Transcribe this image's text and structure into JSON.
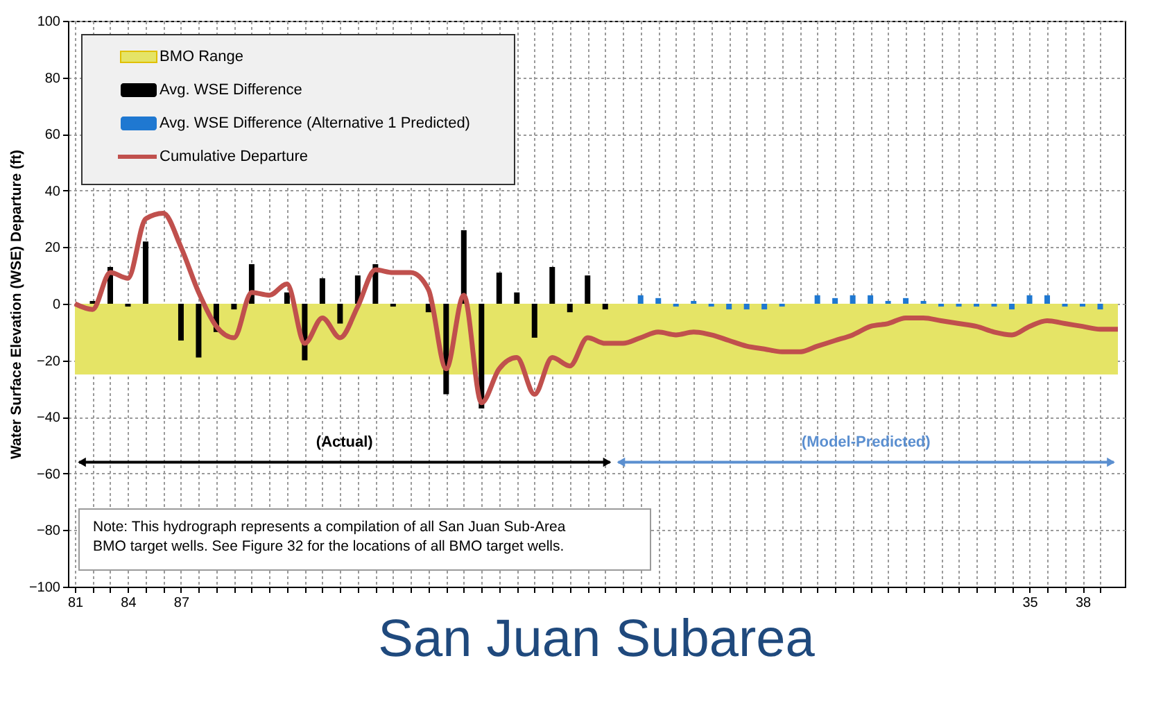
{
  "chart_data": {
    "type": "bar",
    "title": "San Juan Subarea",
    "ylabel": "Water Surface Elevation (WSE) Departure (ft)",
    "xlim": [
      1981,
      2040
    ],
    "ylim": [
      -100,
      100
    ],
    "yticks": [
      -100,
      -80,
      -60,
      -40,
      -20,
      0,
      20,
      40,
      60,
      80,
      100
    ],
    "xticks": [
      {
        "value": 1981,
        "label": "81"
      },
      {
        "value": 1982,
        "label": null
      },
      {
        "value": 1983,
        "label": null
      },
      {
        "value": 1984,
        "label": "84"
      },
      {
        "value": 1985,
        "label": null
      },
      {
        "value": 1986,
        "label": null
      },
      {
        "value": 1987,
        "label": "87"
      },
      {
        "value": 1988,
        "label": null
      },
      {
        "value": 1989,
        "label": null
      },
      {
        "value": 1990,
        "label": null
      },
      {
        "value": 1991,
        "label": null
      },
      {
        "value": 1992,
        "label": null
      },
      {
        "value": 1993,
        "label": null
      },
      {
        "value": 1994,
        "label": null
      },
      {
        "value": 1995,
        "label": null
      },
      {
        "value": 1996,
        "label": null
      },
      {
        "value": 1997,
        "label": null
      },
      {
        "value": 1998,
        "label": null
      },
      {
        "value": 1999,
        "label": null
      },
      {
        "value": 2000,
        "label": null
      },
      {
        "value": 2001,
        "label": null
      },
      {
        "value": 2002,
        "label": null
      },
      {
        "value": 2003,
        "label": null
      },
      {
        "value": 2004,
        "label": null
      },
      {
        "value": 2005,
        "label": null
      },
      {
        "value": 2006,
        "label": null
      },
      {
        "value": 2007,
        "label": null
      },
      {
        "value": 2008,
        "label": null
      },
      {
        "value": 2009,
        "label": null
      },
      {
        "value": 2010,
        "label": null
      },
      {
        "value": 2011,
        "label": null
      },
      {
        "value": 2012,
        "label": null
      },
      {
        "value": 2013,
        "label": null
      },
      {
        "value": 2014,
        "label": null
      },
      {
        "value": 2015,
        "label": null
      },
      {
        "value": 2016,
        "label": null
      },
      {
        "value": 2017,
        "label": null
      },
      {
        "value": 2018,
        "label": null
      },
      {
        "value": 2019,
        "label": null
      },
      {
        "value": 2020,
        "label": null
      },
      {
        "value": 2021,
        "label": null
      },
      {
        "value": 2022,
        "label": null
      },
      {
        "value": 2023,
        "label": null
      },
      {
        "value": 2024,
        "label": null
      },
      {
        "value": 2025,
        "label": null
      },
      {
        "value": 2026,
        "label": null
      },
      {
        "value": 2027,
        "label": null
      },
      {
        "value": 2028,
        "label": null
      },
      {
        "value": 2029,
        "label": null
      },
      {
        "value": 2030,
        "label": null
      },
      {
        "value": 2031,
        "label": null
      },
      {
        "value": 2032,
        "label": null
      },
      {
        "value": 2033,
        "label": null
      },
      {
        "value": 2034,
        "label": null
      },
      {
        "value": 2035,
        "label": "35"
      },
      {
        "value": 2036,
        "label": null
      },
      {
        "value": 2037,
        "label": null
      },
      {
        "value": 2038,
        "label": "38"
      },
      {
        "value": 2039,
        "label": null
      }
    ],
    "grid": true,
    "legend": "top left",
    "bands": [
      {
        "axis": "y",
        "from": -25,
        "to": 0,
        "label": "BMO Range",
        "color": "#e5e466"
      }
    ],
    "series": [
      {
        "name": "Avg. WSE Difference",
        "color": "#000000",
        "x": [
          1982,
          1983,
          1984,
          1985,
          1986,
          1987,
          1988,
          1989,
          1990,
          1991,
          1992,
          1993,
          1994,
          1995,
          1996,
          1997,
          1998,
          1999,
          2000,
          2001,
          2002,
          2003,
          2004,
          2005,
          2006,
          2007,
          2008,
          2009,
          2010,
          2011
        ],
        "values": [
          1,
          13,
          -1,
          22,
          0,
          -13,
          -19,
          -10,
          -2,
          14,
          0,
          4,
          -20,
          9,
          -7,
          10,
          14,
          -1,
          null,
          -3,
          -32,
          26,
          -37,
          11,
          4,
          -12,
          13,
          -3,
          10,
          -2
        ]
      },
      {
        "name": "Avg. WSE Difference (Alternative 1 Predicted)",
        "color": "#1f78d1",
        "x": [
          2012,
          2013,
          2014,
          2015,
          2016,
          2017,
          2018,
          2019,
          2020,
          2021,
          2022,
          2023,
          2024,
          2025,
          2026,
          2027,
          2028,
          2029,
          2030,
          2031,
          2032,
          2033,
          2034,
          2035,
          2036,
          2037,
          2038,
          2039
        ],
        "values": [
          0,
          3,
          2,
          -1,
          1,
          -1,
          -2,
          -2,
          -2,
          -1,
          0,
          3,
          2,
          3,
          3,
          1,
          2,
          1,
          -1,
          -1,
          -1,
          -1,
          -2,
          3,
          3,
          -1,
          -1,
          -2
        ]
      },
      {
        "name": "Cumulative Departure",
        "type": "line",
        "color": "#c0504d",
        "x": [
          1981,
          1982,
          1983,
          1984,
          1985,
          1986,
          1987,
          1988,
          1989,
          1990,
          1991,
          1992,
          1993,
          1994,
          1995,
          1996,
          1997,
          1998,
          1999,
          2000,
          2001,
          2002,
          2003,
          2004,
          2005,
          2006,
          2007,
          2008,
          2009,
          2010,
          2011,
          2012,
          2013,
          2014,
          2015,
          2016,
          2017,
          2018,
          2019,
          2020,
          2021,
          2022,
          2023,
          2024,
          2025,
          2026,
          2027,
          2028,
          2029,
          2030,
          2031,
          2032,
          2033,
          2034,
          2035,
          2036,
          2037,
          2038,
          2039,
          2040
        ],
        "values": [
          0,
          -2,
          11,
          9,
          30,
          32,
          20,
          4,
          -8,
          -12,
          4,
          3,
          7,
          -14,
          -5,
          -12,
          -1,
          12,
          11,
          11,
          5,
          -23,
          3,
          -35,
          -23,
          -19,
          -32,
          -19,
          -22,
          -12,
          -14,
          -14,
          -12,
          -10,
          -11,
          -10,
          -11,
          -13,
          -15,
          -16,
          -17,
          -17,
          -15,
          -13,
          -11,
          -8,
          -7,
          -5,
          -5,
          -6,
          -7,
          -8,
          -10,
          -11,
          -8,
          -6,
          -7,
          -8,
          -9,
          -9
        ]
      }
    ],
    "annotations": [
      "(Actual)",
      "(Model-Predicted)",
      "Note:  This hydrograph represents a compilation of all San Juan Sub-Area\nBMO target wells.  See Figure 32 for the locations of all BMO target wells."
    ]
  }
}
